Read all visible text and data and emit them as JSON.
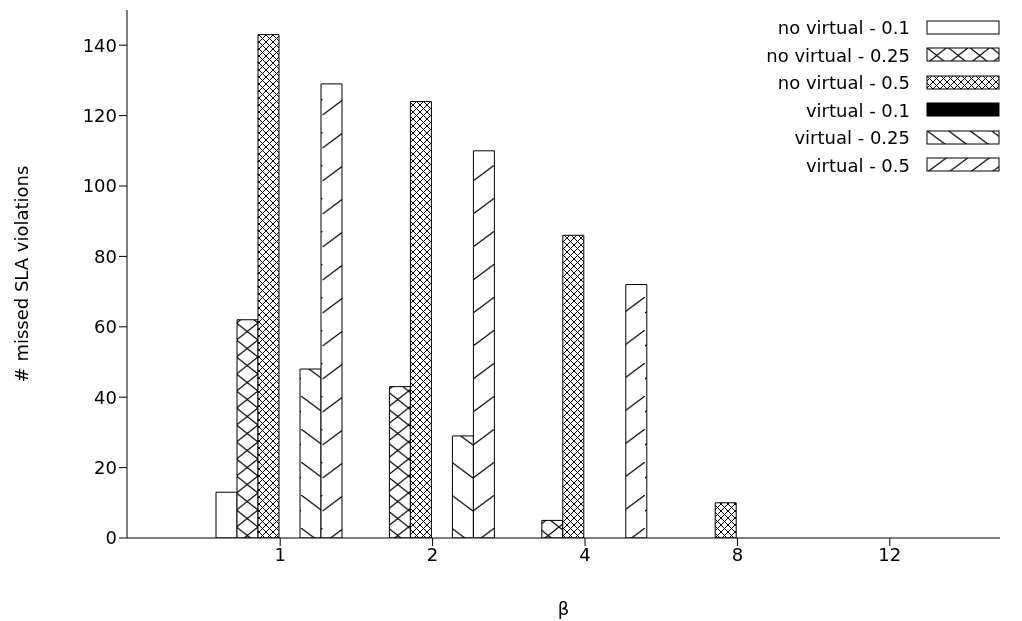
{
  "chart_data": {
    "type": "bar",
    "xlabel": "β",
    "ylabel": "# missed SLA violations",
    "categories": [
      "1",
      "2",
      "4",
      "8",
      "12"
    ],
    "series": [
      {
        "name": "no virtual - 0.1",
        "color": "#ffffff",
        "values": [
          13,
          0,
          0,
          0,
          0
        ]
      },
      {
        "name": "no virtual - 0.25",
        "color": "#000000",
        "values": [
          62,
          43,
          5,
          0,
          0
        ]
      },
      {
        "name": "no virtual - 0.5",
        "color": "#000000",
        "values": [
          143,
          124,
          86,
          10,
          0
        ]
      },
      {
        "name": "virtual - 0.1",
        "color": "#000000",
        "values": [
          0,
          0,
          0,
          0,
          0
        ]
      },
      {
        "name": "virtual - 0.25",
        "color": "#000000",
        "values": [
          48,
          29,
          0,
          0,
          0
        ]
      },
      {
        "name": "virtual - 0.5",
        "color": "#000000",
        "values": [
          129,
          110,
          72,
          0,
          0
        ]
      }
    ],
    "ylim": [
      0,
      150
    ],
    "yticks": [
      0,
      20,
      40,
      60,
      80,
      100,
      120,
      140
    ],
    "grid": false,
    "legend": "top right"
  }
}
